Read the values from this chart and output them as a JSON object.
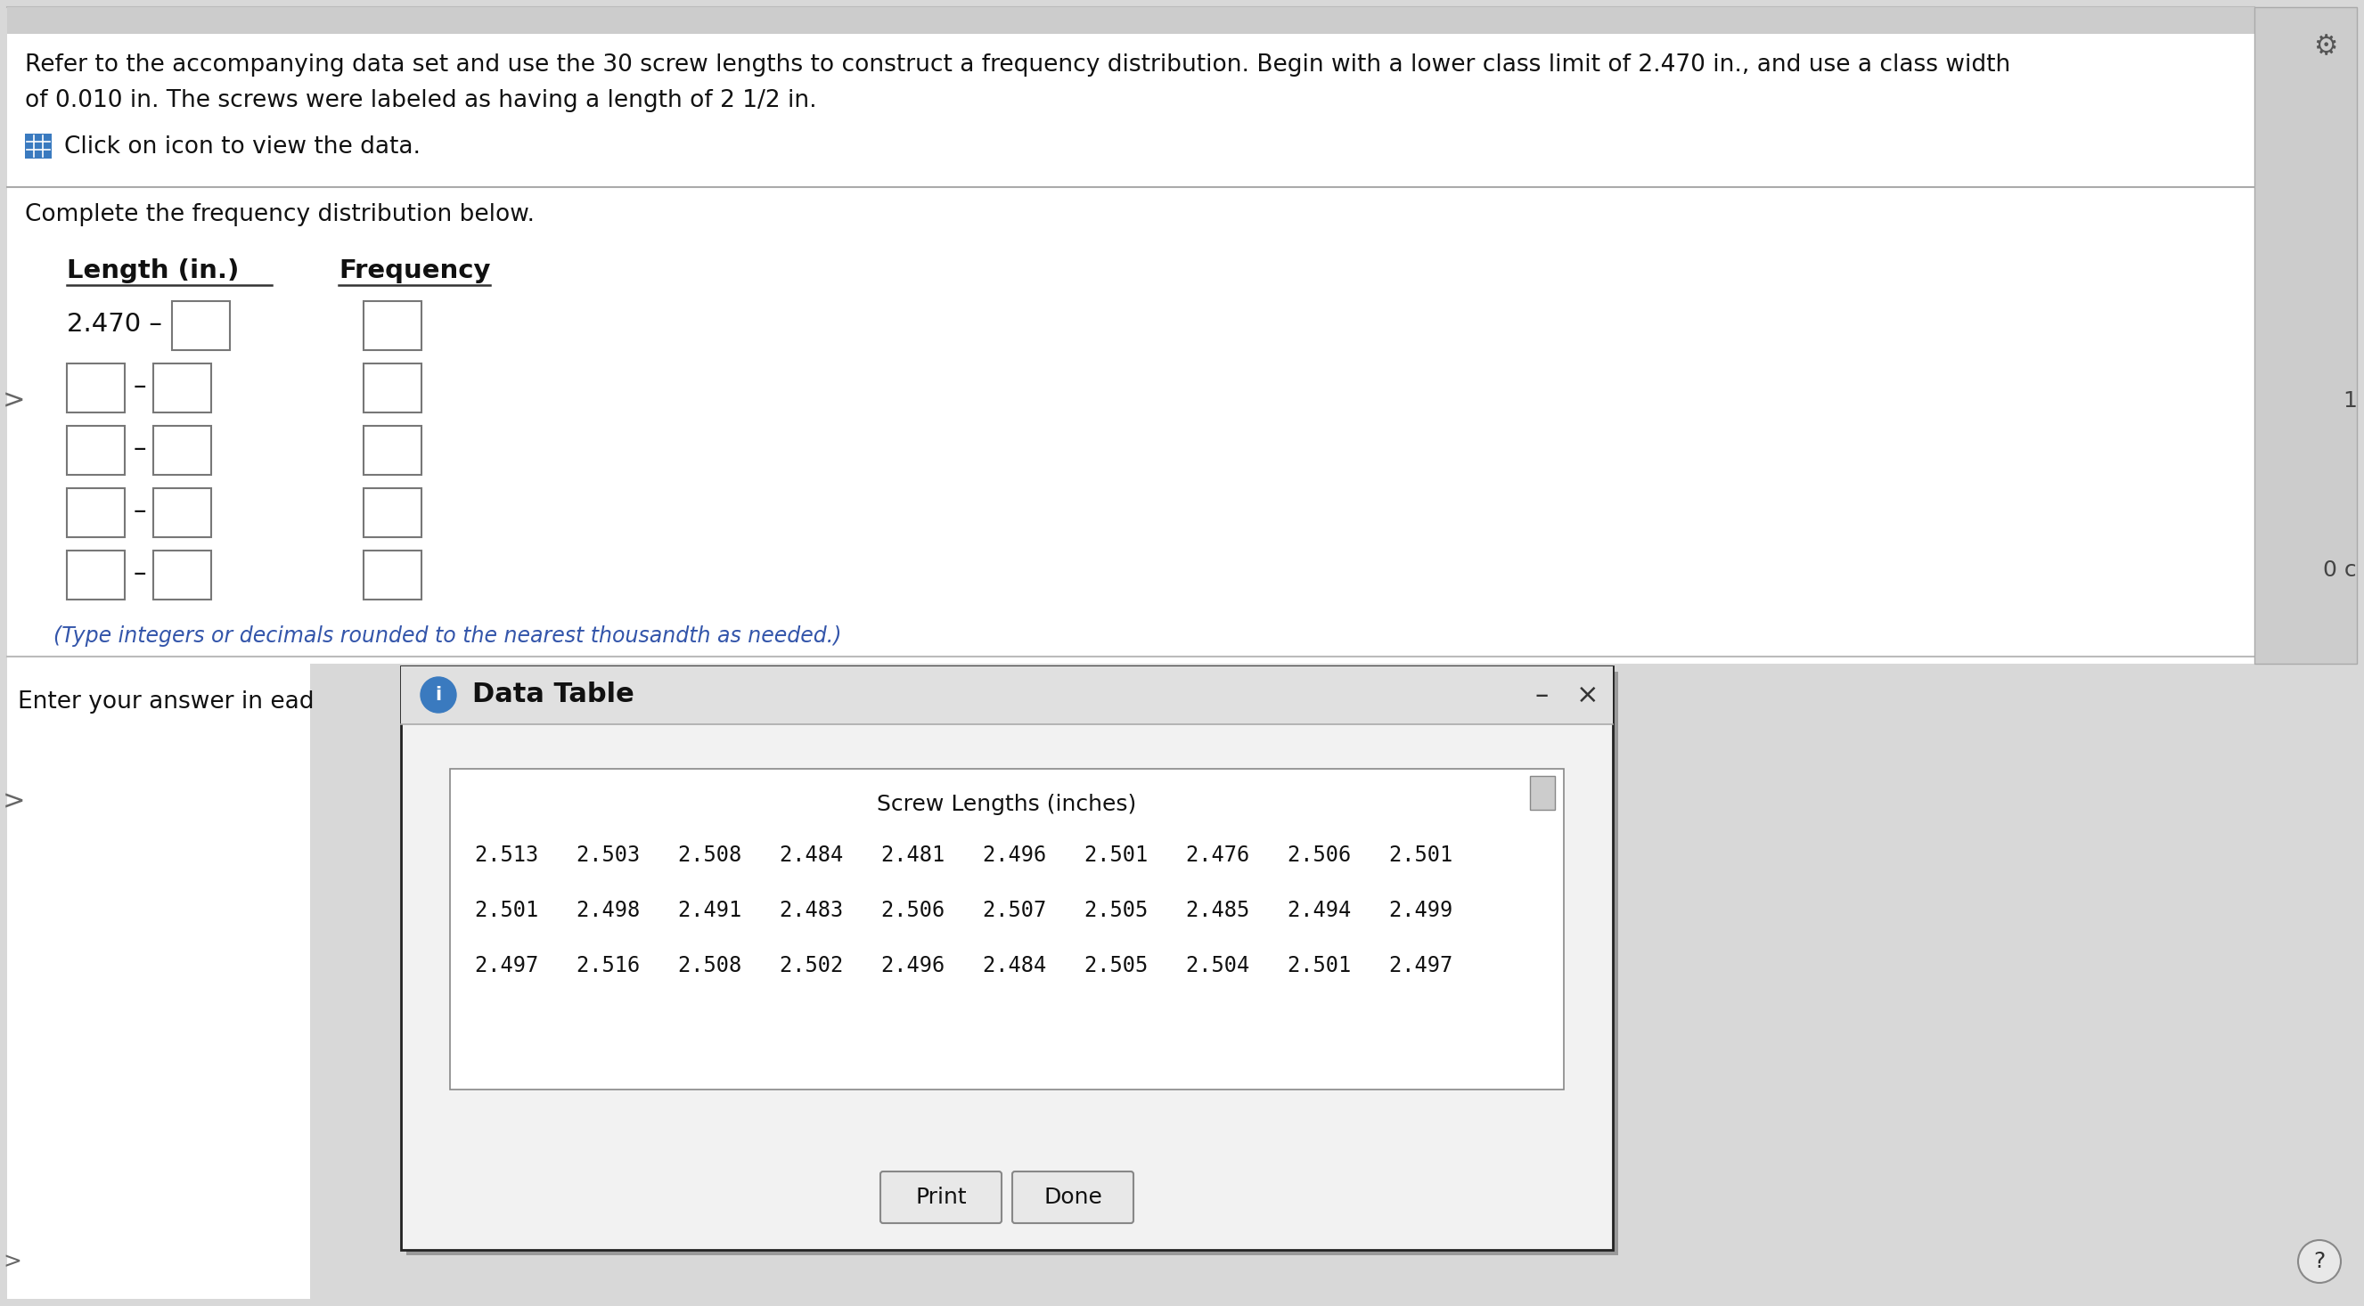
{
  "bg_color": "#d8d8d8",
  "white": "#ffffff",
  "light_gray": "#f0f0f0",
  "mid_gray": "#e0e0e0",
  "dialog_border": "#222222",
  "header_text_line1": "Refer to the accompanying data set and use the 30 screw lengths to construct a frequency distribution. Begin with a lower class limit of 2.470 in., and use a class width",
  "header_text_line2": "of 0.010 in. The screws were labeled as having a length of 2 1/2 in.",
  "click_text": "Click on icon to view the data.",
  "complete_text": "Complete the frequency distribution below.",
  "col1_header": "Length (in.)",
  "col2_header": "Frequency",
  "note_text": "(Type integers or decimals rounded to the nearest thousandth as needed.)",
  "dialog_title": "Data Table",
  "data_subtitle": "Screw Lengths (inches)",
  "data_row1": "2.513   2.503   2.508   2.484   2.481   2.496   2.501   2.476   2.506   2.501",
  "data_row2": "2.501   2.498   2.491   2.483   2.506   2.507   2.505   2.485   2.494   2.499",
  "data_row3": "2.497   2.516   2.508   2.502   2.496   2.484   2.505   2.504   2.501   2.497",
  "btn1": "Print",
  "btn2": "Done",
  "footer_text": "Enter your answer in ead",
  "blue_icon_color": "#3a7abf",
  "input_box_color": "#ffffff",
  "input_box_border": "#777777",
  "note_color": "#3355aa",
  "text_color": "#111111",
  "gear_color": "#555555"
}
